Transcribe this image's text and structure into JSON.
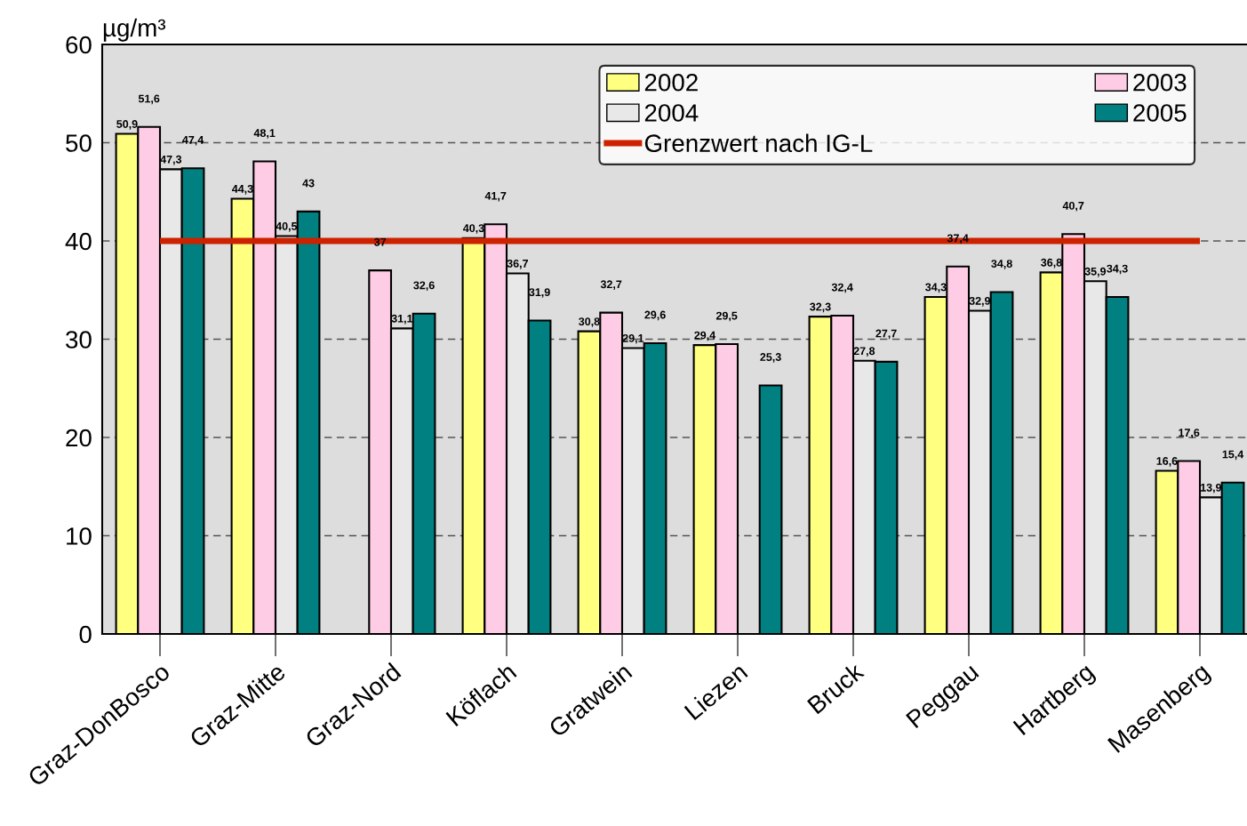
{
  "chart_data": {
    "type": "bar",
    "ylabel": "µg/m³",
    "categories": [
      "Graz-DonBosco",
      "Graz-Mitte",
      "Graz-Nord",
      "Köflach",
      "Gratwein",
      "Liezen",
      "Bruck",
      "Peggau",
      "Hartberg",
      "Masenberg"
    ],
    "series": [
      {
        "name": "2002",
        "color": "#ffff80",
        "values": [
          50.9,
          44.3,
          null,
          40.3,
          30.8,
          29.4,
          32.3,
          34.3,
          36.8,
          16.6
        ],
        "value_labels": [
          "50,9",
          "44,3",
          null,
          "40,3",
          "30,8",
          "29,4",
          "32,3",
          "34,3",
          "36,8",
          "16,6"
        ]
      },
      {
        "name": "2003",
        "color": "#ffcce6",
        "values": [
          51.6,
          48.1,
          37,
          41.7,
          32.7,
          29.5,
          32.4,
          37.4,
          40.7,
          17.6
        ],
        "value_labels": [
          "51,6",
          "48,1",
          "37",
          "41,7",
          "32,7",
          "29,5",
          "32,4",
          "37,4",
          "40,7",
          "17,6"
        ]
      },
      {
        "name": "2004",
        "color": "#e8e8e8",
        "values": [
          47.3,
          40.5,
          31.1,
          36.7,
          29.1,
          null,
          27.8,
          32.9,
          35.9,
          13.9
        ],
        "value_labels": [
          "47,3",
          "40,5",
          "31,1",
          "36,7",
          "29,1",
          null,
          "27,8",
          "32,9",
          "35,9",
          "13,9"
        ]
      },
      {
        "name": "2005",
        "color": "#008080",
        "values": [
          47.4,
          43,
          32.6,
          31.9,
          29.6,
          25.3,
          27.7,
          34.8,
          34.3,
          15.4
        ],
        "value_labels": [
          "47,4",
          "43",
          "32,6",
          "31,9",
          "29,6",
          "25,3",
          "27,7",
          "34,8",
          "34,3",
          "15,4"
        ]
      }
    ],
    "ylim": [
      0,
      60
    ],
    "yticks": [
      0,
      10,
      20,
      30,
      40,
      50,
      60
    ],
    "ref_lines": [
      {
        "axis": "y",
        "value": 40,
        "label": "Grenzwert nach IG-L",
        "color": "#cc2200"
      }
    ],
    "grid": "y",
    "legend": "top right"
  }
}
